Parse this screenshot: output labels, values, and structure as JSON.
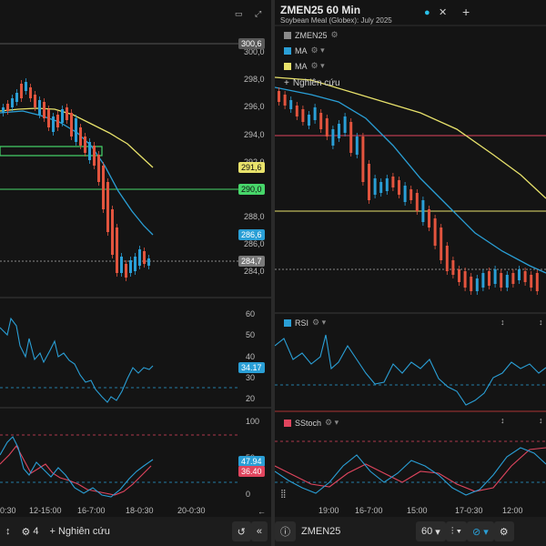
{
  "left": {
    "price_ticks": [
      "300,0",
      "298,0",
      "296,0",
      "294,0",
      "292,0",
      "290,0",
      "288,0",
      "286,0",
      "284,0"
    ],
    "price_tags": [
      {
        "label": "300,6",
        "bg": "#5a5a5a",
        "fg": "#ffffff",
        "y": 48
      },
      {
        "label": "291,6",
        "bg": "#e8e26b",
        "fg": "#111111",
        "y": 184
      },
      {
        "label": "290,0",
        "bg": "#47d66a",
        "fg": "#111111",
        "y": 208
      },
      {
        "label": "286,6",
        "bg": "#2a9fd6",
        "fg": "#ffffff",
        "y": 258
      },
      {
        "label": "284,7",
        "bg": "#7a7a7a",
        "fg": "#ffffff",
        "y": 287
      }
    ],
    "rsi_ticks": [
      "60",
      "50",
      "40",
      "30",
      "20"
    ],
    "rsi_tag": "34.17",
    "stoch_ticks": [
      "100",
      "50",
      "0"
    ],
    "stoch_tags": [
      "47.94",
      "36.40"
    ],
    "time_labels": [
      "0:30",
      "12-15:00",
      "16-7:00",
      "18-0:30",
      "20-0:30"
    ],
    "toolbar": {
      "settings_count": "4",
      "research_label": "Nghiên cứu"
    }
  },
  "right": {
    "title": "ZMEN25 60 Min",
    "subtitle": "Soybean Meal (Globex): July 2025",
    "legend": [
      {
        "label": "ZMEN25",
        "color": "#8a8a8a"
      },
      {
        "label": "MA",
        "color": "#2a9fd6"
      },
      {
        "label": "MA",
        "color": "#e8e26b"
      }
    ],
    "research_label": "Nghiên cứu",
    "rsi_label": "RSI",
    "stoch_label": "SStoch",
    "time_labels": [
      "19:00",
      "16-7:00",
      "15:00",
      "17-0:30",
      "12:00"
    ],
    "toolbar": {
      "symbol": "ZMEN25",
      "interval": "60"
    }
  },
  "colors": {
    "up": "#2a9fd6",
    "down": "#e2543e",
    "ma_blue": "#2a9fd6",
    "ma_yellow": "#e8e26b",
    "green": "#47d66a",
    "red": "#e0455e"
  }
}
